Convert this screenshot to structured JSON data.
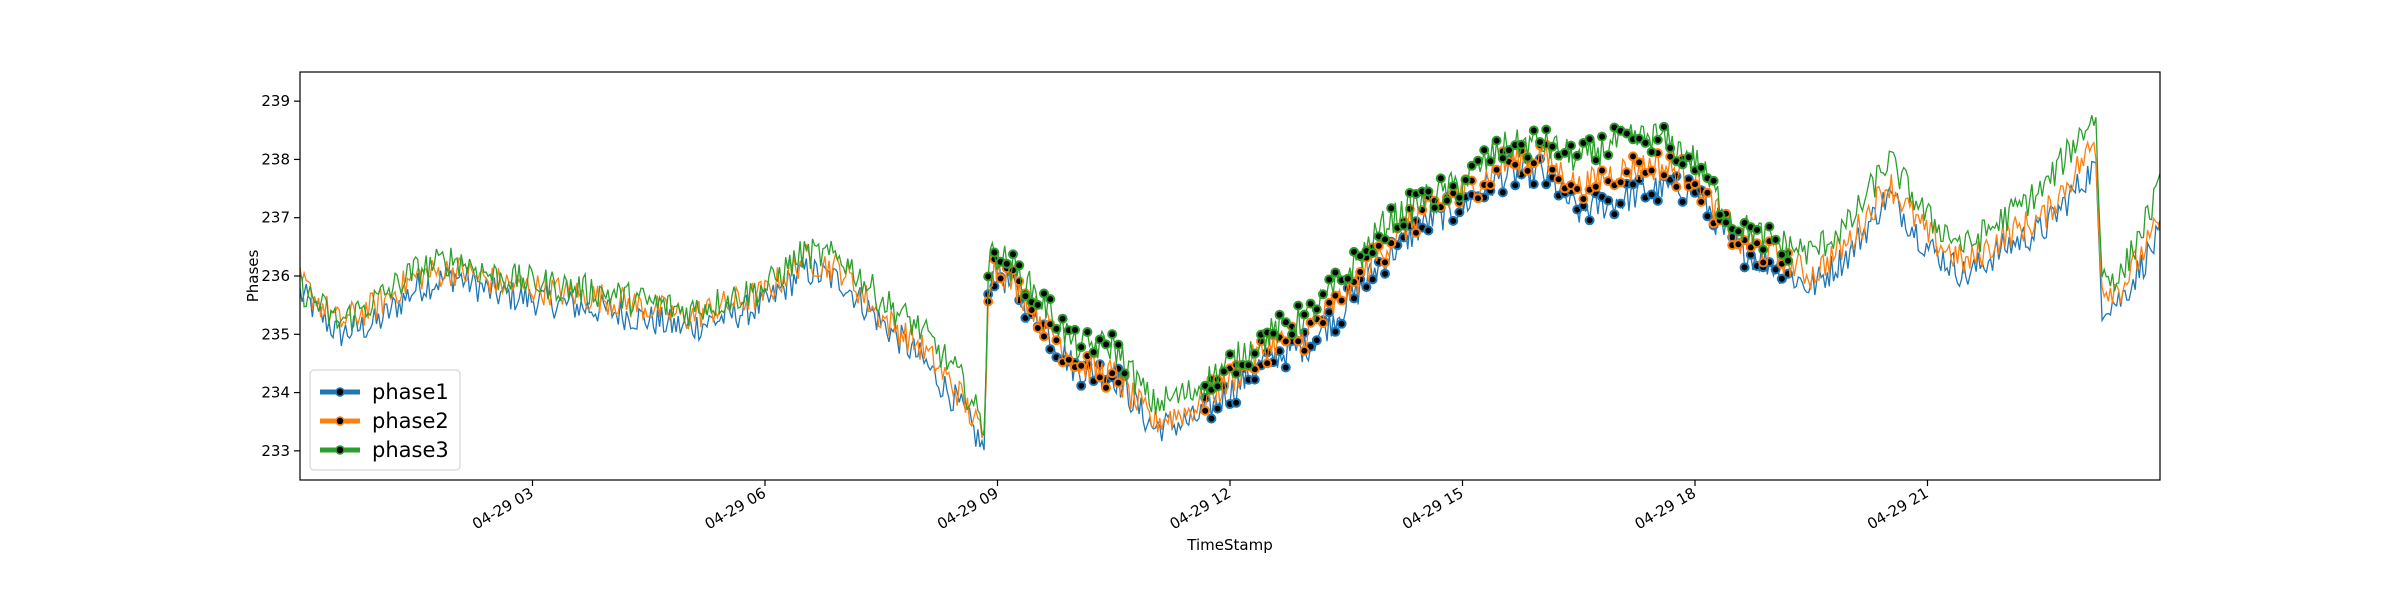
{
  "chart_data": {
    "type": "line",
    "xlabel": "TimeStamp",
    "ylabel": "Phases",
    "x_range": [
      "04-29 00:00",
      "04-29 24:00"
    ],
    "ylim": [
      232.5,
      239.5
    ],
    "grid": false,
    "legend": {
      "placement": "lower-left",
      "entries": [
        "phase1",
        "phase2",
        "phase3"
      ]
    },
    "x_ticks": [
      "04-29 03",
      "04-29 06",
      "04-29 09",
      "04-29 12",
      "04-29 15",
      "04-29 18",
      "04-29 21"
    ],
    "y_ticks": [
      "233",
      "234",
      "235",
      "236",
      "237",
      "238",
      "239"
    ],
    "series": [
      {
        "name": "phase1",
        "color": "#1f77b4",
        "marker": "black dot on highlighted anomaly segments",
        "points": [
          [
            "00:00",
            235.7
          ],
          [
            "00:30",
            235.0
          ],
          [
            "01:00",
            235.2
          ],
          [
            "01:30",
            235.8
          ],
          [
            "02:00",
            236.0
          ],
          [
            "02:30",
            235.7
          ],
          [
            "03:00",
            235.6
          ],
          [
            "04:00",
            235.4
          ],
          [
            "05:00",
            235.1
          ],
          [
            "06:00",
            235.5
          ],
          [
            "06:30",
            236.1
          ],
          [
            "07:00",
            235.9
          ],
          [
            "07:30",
            235.2
          ],
          [
            "08:00",
            234.6
          ],
          [
            "08:30",
            233.8
          ],
          [
            "08:50",
            233.0
          ],
          [
            "08:53",
            235.9
          ],
          [
            "09:00",
            236.1
          ],
          [
            "09:30",
            235.3
          ],
          [
            "10:00",
            234.4
          ],
          [
            "10:30",
            234.3
          ],
          [
            "11:00",
            233.4
          ],
          [
            "11:30",
            233.5
          ],
          [
            "12:00",
            234.0
          ],
          [
            "12:30",
            234.6
          ],
          [
            "13:00",
            234.8
          ],
          [
            "13:30",
            235.5
          ],
          [
            "14:00",
            236.3
          ],
          [
            "14:30",
            236.9
          ],
          [
            "15:00",
            237.2
          ],
          [
            "15:30",
            237.7
          ],
          [
            "16:00",
            237.8
          ],
          [
            "16:30",
            237.1
          ],
          [
            "17:00",
            237.3
          ],
          [
            "17:30",
            237.5
          ],
          [
            "18:00",
            237.5
          ],
          [
            "18:30",
            236.5
          ],
          [
            "19:00",
            236.2
          ],
          [
            "19:30",
            235.8
          ],
          [
            "20:00",
            236.4
          ],
          [
            "20:30",
            237.4
          ],
          [
            "21:00",
            236.5
          ],
          [
            "21:30",
            236.0
          ],
          [
            "22:00",
            236.5
          ],
          [
            "22:30",
            236.8
          ],
          [
            "23:10",
            237.9
          ],
          [
            "23:15",
            235.5
          ],
          [
            "23:30",
            235.6
          ],
          [
            "24:00",
            236.7
          ]
        ]
      },
      {
        "name": "phase2",
        "color": "#ff7f0e",
        "marker": "black dot on highlighted anomaly segments",
        "points": [
          [
            "00:00",
            235.9
          ],
          [
            "00:30",
            235.2
          ],
          [
            "01:00",
            235.5
          ],
          [
            "01:30",
            236.0
          ],
          [
            "02:00",
            236.1
          ],
          [
            "02:30",
            235.9
          ],
          [
            "03:00",
            235.8
          ],
          [
            "04:00",
            235.6
          ],
          [
            "05:00",
            235.3
          ],
          [
            "06:00",
            235.7
          ],
          [
            "06:30",
            236.3
          ],
          [
            "07:00",
            236.1
          ],
          [
            "07:30",
            235.3
          ],
          [
            "08:00",
            234.8
          ],
          [
            "08:30",
            234.0
          ],
          [
            "08:50",
            233.2
          ],
          [
            "08:53",
            236.0
          ],
          [
            "09:00",
            236.2
          ],
          [
            "09:30",
            235.4
          ],
          [
            "10:00",
            234.5
          ],
          [
            "10:30",
            234.3
          ],
          [
            "11:00",
            233.5
          ],
          [
            "11:30",
            233.7
          ],
          [
            "12:00",
            234.2
          ],
          [
            "12:30",
            234.8
          ],
          [
            "13:00",
            235.0
          ],
          [
            "13:30",
            235.7
          ],
          [
            "14:00",
            236.5
          ],
          [
            "14:30",
            237.1
          ],
          [
            "15:00",
            237.4
          ],
          [
            "15:30",
            237.9
          ],
          [
            "16:00",
            238.1
          ],
          [
            "16:30",
            237.5
          ],
          [
            "17:00",
            237.8
          ],
          [
            "17:30",
            237.9
          ],
          [
            "18:00",
            237.7
          ],
          [
            "18:30",
            236.6
          ],
          [
            "19:00",
            236.4
          ],
          [
            "19:30",
            236.0
          ],
          [
            "20:00",
            236.6
          ],
          [
            "20:30",
            237.6
          ],
          [
            "21:00",
            236.7
          ],
          [
            "21:30",
            236.2
          ],
          [
            "22:00",
            236.7
          ],
          [
            "22:30",
            237.0
          ],
          [
            "23:10",
            238.3
          ],
          [
            "23:15",
            235.8
          ],
          [
            "23:30",
            235.8
          ],
          [
            "24:00",
            236.9
          ]
        ]
      },
      {
        "name": "phase3",
        "color": "#2ca02c",
        "marker": "black dot on highlighted anomaly segments",
        "points": [
          [
            "00:00",
            235.8
          ],
          [
            "00:30",
            235.2
          ],
          [
            "01:00",
            235.6
          ],
          [
            "01:30",
            236.1
          ],
          [
            "02:00",
            236.3
          ],
          [
            "02:30",
            236.0
          ],
          [
            "03:00",
            235.9
          ],
          [
            "04:00",
            235.7
          ],
          [
            "05:00",
            235.4
          ],
          [
            "06:00",
            235.8
          ],
          [
            "06:30",
            236.4
          ],
          [
            "07:00",
            236.3
          ],
          [
            "07:30",
            235.6
          ],
          [
            "08:00",
            235.1
          ],
          [
            "08:30",
            234.3
          ],
          [
            "08:50",
            233.4
          ],
          [
            "08:53",
            236.3
          ],
          [
            "09:00",
            236.4
          ],
          [
            "09:30",
            235.7
          ],
          [
            "10:00",
            234.8
          ],
          [
            "10:30",
            234.8
          ],
          [
            "11:00",
            233.8
          ],
          [
            "11:30",
            234.0
          ],
          [
            "12:00",
            234.5
          ],
          [
            "12:30",
            235.0
          ],
          [
            "13:00",
            235.3
          ],
          [
            "13:30",
            236.0
          ],
          [
            "14:00",
            236.9
          ],
          [
            "14:30",
            237.3
          ],
          [
            "15:00",
            237.6
          ],
          [
            "15:30",
            238.2
          ],
          [
            "16:00",
            238.3
          ],
          [
            "16:30",
            238.0
          ],
          [
            "17:00",
            238.3
          ],
          [
            "17:30",
            238.4
          ],
          [
            "18:00",
            238.0
          ],
          [
            "18:30",
            236.9
          ],
          [
            "19:00",
            236.6
          ],
          [
            "19:30",
            236.4
          ],
          [
            "20:00",
            236.9
          ],
          [
            "20:30",
            238.0
          ],
          [
            "21:00",
            237.0
          ],
          [
            "21:30",
            236.5
          ],
          [
            "22:00",
            237.0
          ],
          [
            "22:30",
            237.5
          ],
          [
            "23:10",
            238.8
          ],
          [
            "23:15",
            236.0
          ],
          [
            "23:30",
            236.0
          ],
          [
            "24:00",
            237.5
          ]
        ]
      }
    ],
    "highlighted_ranges": [
      [
        "08:50",
        "10:40"
      ],
      [
        "11:40",
        "15:10"
      ],
      [
        "15:10",
        "18:30"
      ],
      [
        "18:30",
        "19:15"
      ]
    ]
  }
}
